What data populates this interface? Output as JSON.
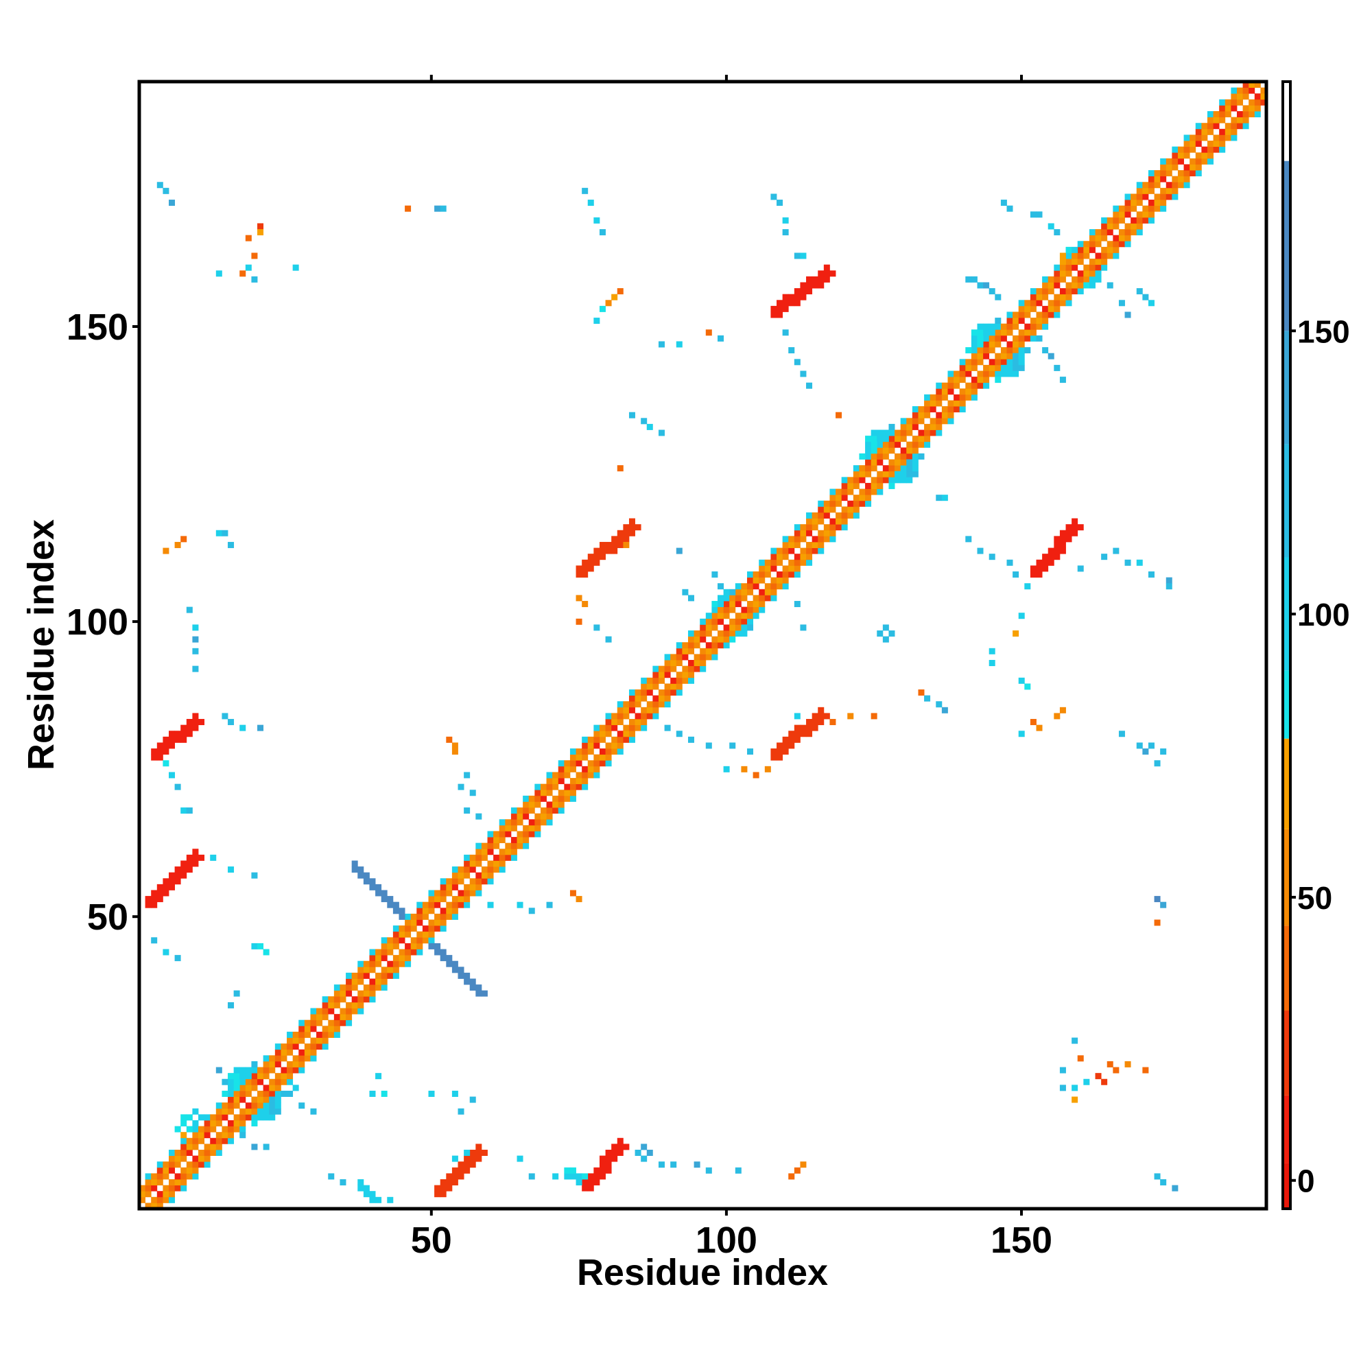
{
  "chart_data": {
    "type": "heatmap",
    "title": "",
    "xlabel": "Residue index",
    "ylabel": "Residue index",
    "xlim": [
      0.5,
      191.5
    ],
    "ylim": [
      0.5,
      191.5
    ],
    "x_ticks": [
      50,
      100,
      150
    ],
    "y_ticks": [
      50,
      100,
      150
    ],
    "x_tick_labels": [
      "50",
      "100",
      "150"
    ],
    "y_tick_labels": [
      "50",
      "100",
      "150"
    ],
    "colorbar": {
      "range": [
        -5,
        194
      ],
      "ticks": [
        0,
        50,
        100,
        150
      ],
      "tick_labels": [
        "0",
        "50",
        "100",
        "150"
      ],
      "bands": [
        {
          "from": -5,
          "to": 3,
          "color": "#e8170a"
        },
        {
          "from": 3,
          "to": 15,
          "color": "#f02010"
        },
        {
          "from": 15,
          "to": 30,
          "color": "#ee3a0c"
        },
        {
          "from": 30,
          "to": 45,
          "color": "#f46a08"
        },
        {
          "from": 45,
          "to": 62,
          "color": "#f58a05"
        },
        {
          "from": 62,
          "to": 78,
          "color": "#f7a000"
        },
        {
          "from": 78,
          "to": 90,
          "color": "#18e3e8"
        },
        {
          "from": 90,
          "to": 110,
          "color": "#1ed0ea"
        },
        {
          "from": 110,
          "to": 130,
          "color": "#2bbce2"
        },
        {
          "from": 130,
          "to": 150,
          "color": "#3aa6d6"
        },
        {
          "from": 150,
          "to": 180,
          "color": "#4a88c2"
        },
        {
          "from": 180,
          "to": 194,
          "color": "#ffffff"
        }
      ]
    },
    "diagonal": {
      "from": 1,
      "to": 191
    },
    "segments": [
      {
        "x0": 37,
        "y0": 58,
        "x1": 48,
        "y1": 47,
        "value": 165
      },
      {
        "x0": 48,
        "y0": 47,
        "x1": 58,
        "y1": 37,
        "value": 150
      },
      {
        "x0": 2,
        "y0": 52,
        "x1": 10,
        "y1": 60,
        "value": 10
      },
      {
        "x0": 3,
        "y0": 77,
        "x1": 10,
        "y1": 83,
        "value": 10
      },
      {
        "x0": 51,
        "y0": 3,
        "x1": 58,
        "y1": 10,
        "value": 20
      },
      {
        "x0": 76,
        "y0": 4,
        "x1": 82,
        "y1": 11,
        "value": 10
      },
      {
        "x0": 75,
        "y0": 108,
        "x1": 84,
        "y1": 116,
        "value": 25
      },
      {
        "x0": 108,
        "y0": 77,
        "x1": 116,
        "y1": 84,
        "value": 20
      },
      {
        "x0": 108,
        "y0": 152,
        "x1": 117,
        "y1": 159,
        "value": 10
      },
      {
        "x0": 152,
        "y0": 108,
        "x1": 159,
        "y1": 116,
        "value": 10
      },
      {
        "x0": 38,
        "y0": 4,
        "x1": 40,
        "y1": 2,
        "value": 100
      },
      {
        "x0": 73,
        "y0": 6,
        "x1": 76,
        "y1": 5,
        "value": 90
      }
    ],
    "blobs": [
      {
        "cx": 20,
        "cy": 20,
        "r": 5,
        "value": 100
      },
      {
        "cx": 10,
        "cy": 14,
        "r": 3,
        "value": 90
      },
      {
        "cx": 86,
        "cy": 86,
        "r": 3,
        "value": 85
      },
      {
        "cx": 101,
        "cy": 101,
        "r": 4,
        "value": 100
      },
      {
        "cx": 128,
        "cy": 128,
        "r": 5,
        "value": 100
      },
      {
        "cx": 146,
        "cy": 146,
        "r": 5,
        "value": 100
      },
      {
        "cx": 160,
        "cy": 160,
        "r": 4,
        "value": 90
      },
      {
        "cx": 86,
        "cy": 10,
        "r": 2,
        "value": 130
      },
      {
        "cx": 127,
        "cy": 98,
        "r": 1,
        "value": 120
      }
    ],
    "scatter_points": [
      [
        4,
        174,
        120
      ],
      [
        5,
        173,
        110
      ],
      [
        6,
        171,
        130
      ],
      [
        21,
        167,
        20
      ],
      [
        19,
        165,
        40
      ],
      [
        21,
        166,
        70
      ],
      [
        20,
        162,
        30
      ],
      [
        19,
        160,
        100
      ],
      [
        18,
        159,
        40
      ],
      [
        14,
        159,
        100
      ],
      [
        20,
        158,
        120
      ],
      [
        27,
        160,
        100
      ],
      [
        46,
        170,
        40
      ],
      [
        51,
        170,
        130
      ],
      [
        52,
        170,
        115
      ],
      [
        76,
        173,
        120
      ],
      [
        77,
        171,
        100
      ],
      [
        78,
        168,
        100
      ],
      [
        79,
        166,
        110
      ],
      [
        108,
        172,
        110
      ],
      [
        109,
        171,
        120
      ],
      [
        110,
        168,
        100
      ],
      [
        110,
        166,
        120
      ],
      [
        112,
        162,
        110
      ],
      [
        113,
        162,
        100
      ],
      [
        82,
        156,
        40
      ],
      [
        81,
        155,
        70
      ],
      [
        80,
        154,
        50
      ],
      [
        79,
        153,
        80
      ],
      [
        78,
        151,
        100
      ],
      [
        97,
        149,
        40
      ],
      [
        99,
        148,
        110
      ],
      [
        89,
        147,
        120
      ],
      [
        92,
        147,
        100
      ],
      [
        110,
        149,
        110
      ],
      [
        111,
        146,
        120
      ],
      [
        112,
        144,
        110
      ],
      [
        113,
        142,
        120
      ],
      [
        114,
        140,
        110
      ],
      [
        84,
        135,
        110
      ],
      [
        86,
        134,
        120
      ],
      [
        87,
        133,
        100
      ],
      [
        89,
        132,
        120
      ],
      [
        119,
        135,
        40
      ],
      [
        82,
        126,
        40
      ],
      [
        84,
        116,
        60
      ],
      [
        83,
        113,
        50
      ],
      [
        75,
        104,
        60
      ],
      [
        76,
        103,
        60
      ],
      [
        75,
        100,
        40
      ],
      [
        78,
        99,
        110
      ],
      [
        80,
        97,
        120
      ],
      [
        93,
        105,
        110
      ],
      [
        94,
        104,
        120
      ],
      [
        99,
        106,
        110
      ],
      [
        100,
        105,
        100
      ],
      [
        112,
        103,
        110
      ],
      [
        113,
        99,
        120
      ],
      [
        92,
        112,
        130
      ],
      [
        98,
        108,
        110
      ],
      [
        8,
        114,
        40
      ],
      [
        7,
        113,
        50
      ],
      [
        5,
        112,
        60
      ],
      [
        14,
        115,
        100
      ],
      [
        15,
        115,
        110
      ],
      [
        16,
        113,
        110
      ],
      [
        9,
        102,
        110
      ],
      [
        10,
        99,
        100
      ],
      [
        10,
        97,
        130
      ],
      [
        10,
        95,
        120
      ],
      [
        10,
        92,
        120
      ],
      [
        15,
        84,
        110
      ],
      [
        16,
        83,
        120
      ],
      [
        18,
        82,
        100
      ],
      [
        21,
        82,
        130
      ],
      [
        4,
        77,
        85
      ],
      [
        5,
        76,
        80
      ],
      [
        6,
        74,
        100
      ],
      [
        7,
        72,
        110
      ],
      [
        8,
        68,
        100
      ],
      [
        9,
        68,
        110
      ],
      [
        13,
        60,
        90
      ],
      [
        16,
        58,
        100
      ],
      [
        20,
        57,
        120
      ],
      [
        3,
        46,
        120
      ],
      [
        5,
        44,
        100
      ],
      [
        7,
        43,
        110
      ],
      [
        20,
        45,
        90
      ],
      [
        21,
        45,
        85
      ],
      [
        22,
        44,
        80
      ],
      [
        17,
        37,
        120
      ],
      [
        16,
        35,
        110
      ],
      [
        14,
        24,
        130
      ],
      [
        15,
        22,
        120
      ],
      [
        18,
        13,
        120
      ],
      [
        20,
        11,
        130
      ],
      [
        22,
        11,
        110
      ],
      [
        28,
        18,
        120
      ],
      [
        30,
        17,
        110
      ],
      [
        41,
        23,
        100
      ],
      [
        40,
        20,
        90
      ],
      [
        42,
        20,
        85
      ],
      [
        27,
        21,
        100
      ],
      [
        26,
        20,
        120
      ],
      [
        50,
        20,
        90
      ],
      [
        54,
        20,
        100
      ],
      [
        57,
        19,
        110
      ],
      [
        55,
        17,
        120
      ],
      [
        54,
        9,
        100
      ],
      [
        56,
        10,
        90
      ],
      [
        33,
        6,
        110
      ],
      [
        35,
        5,
        120
      ],
      [
        43,
        2,
        100
      ],
      [
        40,
        3,
        110
      ],
      [
        58,
        10,
        100
      ],
      [
        65,
        9,
        100
      ],
      [
        67,
        6,
        110
      ],
      [
        71,
        6,
        90
      ],
      [
        75,
        6,
        85
      ],
      [
        60,
        52,
        100
      ],
      [
        65,
        52,
        90
      ],
      [
        67,
        51,
        120
      ],
      [
        70,
        52,
        110
      ],
      [
        74,
        54,
        40
      ],
      [
        75,
        53,
        60
      ],
      [
        89,
        8,
        120
      ],
      [
        91,
        8,
        110
      ],
      [
        95,
        8,
        130
      ],
      [
        97,
        7,
        110
      ],
      [
        102,
        7,
        120
      ],
      [
        111,
        6,
        40
      ],
      [
        112,
        7,
        30
      ],
      [
        113,
        8,
        50
      ],
      [
        53,
        80,
        40
      ],
      [
        54,
        79,
        50
      ],
      [
        54,
        78,
        50
      ],
      [
        56,
        74,
        110
      ],
      [
        55,
        72,
        110
      ],
      [
        57,
        71,
        120
      ],
      [
        56,
        68,
        110
      ],
      [
        58,
        67,
        120
      ],
      [
        90,
        82,
        110
      ],
      [
        92,
        81,
        120
      ],
      [
        94,
        80,
        110
      ],
      [
        97,
        79,
        120
      ],
      [
        101,
        79,
        110
      ],
      [
        104,
        78,
        110
      ],
      [
        100,
        75,
        90
      ],
      [
        103,
        75,
        50
      ],
      [
        105,
        74,
        40
      ],
      [
        107,
        75,
        60
      ],
      [
        112,
        84,
        100
      ],
      [
        117,
        84,
        50
      ],
      [
        118,
        83,
        40
      ],
      [
        121,
        84,
        60
      ],
      [
        125,
        84,
        40
      ],
      [
        133,
        88,
        40
      ],
      [
        134,
        87,
        110
      ],
      [
        136,
        86,
        120
      ],
      [
        137,
        85,
        130
      ],
      [
        145,
        95,
        90
      ],
      [
        145,
        93,
        100
      ],
      [
        150,
        90,
        90
      ],
      [
        151,
        89,
        80
      ],
      [
        150,
        81,
        100
      ],
      [
        152,
        83,
        40
      ],
      [
        153,
        82,
        50
      ],
      [
        156,
        84,
        50
      ],
      [
        157,
        85,
        60
      ],
      [
        167,
        81,
        110
      ],
      [
        170,
        79,
        120
      ],
      [
        171,
        78,
        130
      ],
      [
        172,
        79,
        120
      ],
      [
        174,
        78,
        110
      ],
      [
        173,
        76,
        120
      ],
      [
        173,
        53,
        150
      ],
      [
        174,
        52,
        140
      ],
      [
        173,
        49,
        30
      ],
      [
        159,
        29,
        120
      ],
      [
        160,
        26,
        30
      ],
      [
        157,
        24,
        120
      ],
      [
        161,
        22,
        100
      ],
      [
        163,
        23,
        20
      ],
      [
        165,
        25,
        30
      ],
      [
        166,
        24,
        40
      ],
      [
        168,
        25,
        50
      ],
      [
        164,
        22,
        20
      ],
      [
        171,
        24,
        30
      ],
      [
        159,
        21,
        100
      ],
      [
        157,
        21,
        120
      ],
      [
        159,
        19,
        70
      ],
      [
        173,
        6,
        120
      ],
      [
        174,
        5,
        110
      ],
      [
        176,
        4,
        130
      ],
      [
        136,
        121,
        110
      ],
      [
        137,
        121,
        100
      ],
      [
        141,
        114,
        110
      ],
      [
        143,
        112,
        120
      ],
      [
        145,
        111,
        110
      ],
      [
        148,
        110,
        120
      ],
      [
        149,
        108,
        110
      ],
      [
        151,
        106,
        100
      ],
      [
        160,
        109,
        110
      ],
      [
        164,
        111,
        120
      ],
      [
        166,
        112,
        110
      ],
      [
        168,
        110,
        120
      ],
      [
        170,
        110,
        100
      ],
      [
        172,
        108,
        110
      ],
      [
        175,
        107,
        130
      ],
      [
        175,
        106,
        120
      ],
      [
        150,
        101,
        100
      ],
      [
        149,
        98,
        70
      ],
      [
        156,
        113,
        90
      ],
      [
        158,
        116,
        85
      ],
      [
        159,
        117,
        60
      ],
      [
        147,
        171,
        110
      ],
      [
        148,
        170,
        120
      ],
      [
        152,
        169,
        110
      ],
      [
        153,
        169,
        120
      ],
      [
        155,
        167,
        100
      ],
      [
        156,
        166,
        110
      ],
      [
        158,
        163,
        90
      ],
      [
        161,
        160,
        80
      ],
      [
        163,
        158,
        90
      ],
      [
        165,
        157,
        110
      ],
      [
        167,
        154,
        120
      ],
      [
        168,
        152,
        130
      ],
      [
        170,
        156,
        120
      ],
      [
        171,
        155,
        110
      ],
      [
        172,
        154,
        100
      ],
      [
        153,
        148,
        110
      ],
      [
        154,
        146,
        120
      ],
      [
        155,
        145,
        130
      ],
      [
        156,
        143,
        110
      ],
      [
        157,
        141,
        120
      ],
      [
        142,
        158,
        120
      ],
      [
        141,
        158,
        110
      ],
      [
        143,
        157,
        110
      ],
      [
        144,
        157,
        130
      ],
      [
        145,
        156,
        120
      ],
      [
        146,
        155,
        110
      ]
    ]
  }
}
